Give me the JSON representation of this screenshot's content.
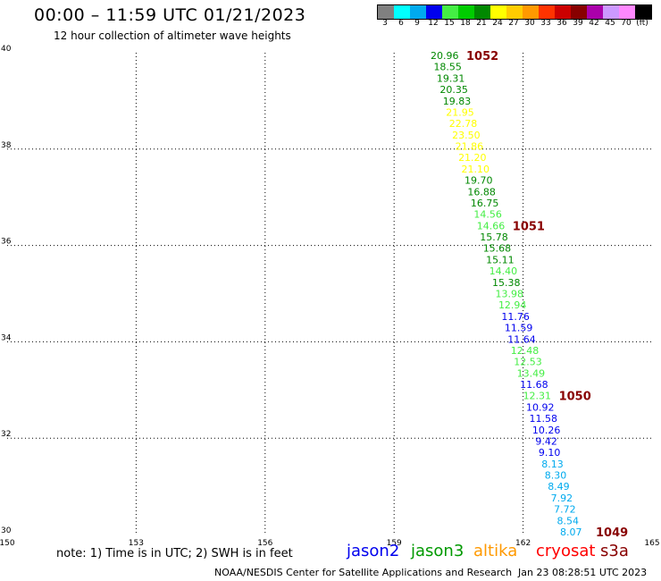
{
  "header": {
    "title": "00:00 – 11:59 UTC 01/21/2023",
    "subtitle": "12 hour collection of altimeter wave heights"
  },
  "legend": {
    "bins": [
      {
        "label": "3",
        "color": "#808080"
      },
      {
        "label": "6",
        "color": "#00ffff"
      },
      {
        "label": "9",
        "color": "#00aaee"
      },
      {
        "label": "12",
        "color": "#0000ee"
      },
      {
        "label": "15",
        "color": "#44ee44"
      },
      {
        "label": "18",
        "color": "#00cc00"
      },
      {
        "label": "21",
        "color": "#008800"
      },
      {
        "label": "24",
        "color": "#ffff00"
      },
      {
        "label": "27",
        "color": "#ffcc00"
      },
      {
        "label": "30",
        "color": "#ff9900"
      },
      {
        "label": "33",
        "color": "#ff3300"
      },
      {
        "label": "36",
        "color": "#cc0000"
      },
      {
        "label": "39",
        "color": "#880000"
      },
      {
        "label": "42",
        "color": "#aa00aa"
      },
      {
        "label": "45",
        "color": "#cc99ff"
      },
      {
        "label": "70",
        "color": "#ff88ff"
      },
      {
        "label": "",
        "color": "#000000"
      }
    ],
    "unit": "(ft)"
  },
  "map": {
    "lon_ticks": [
      "150",
      "153",
      "156",
      "159",
      "162",
      "165"
    ],
    "lat_ticks": [
      "30",
      "32",
      "34",
      "36",
      "38",
      "40"
    ]
  },
  "track": {
    "point_colors": {
      "green": "#008800",
      "lightgreen": "#44ee44",
      "yellow": "#ffff00",
      "blue": "#0000ee",
      "cyan": "#00aaee"
    },
    "swh_values": [
      {
        "label": "20.96",
        "color": "green"
      },
      {
        "label": "18.55",
        "color": "green"
      },
      {
        "label": "19.31",
        "color": "green"
      },
      {
        "label": "20.35",
        "color": "green"
      },
      {
        "label": "19.83",
        "color": "green"
      },
      {
        "label": "21.95",
        "color": "yellow"
      },
      {
        "label": "22.78",
        "color": "yellow"
      },
      {
        "label": "23.50",
        "color": "yellow"
      },
      {
        "label": "21.86",
        "color": "yellow"
      },
      {
        "label": "21.20",
        "color": "yellow"
      },
      {
        "label": "21.10",
        "color": "yellow"
      },
      {
        "label": "19.70",
        "color": "green"
      },
      {
        "label": "16.88",
        "color": "green"
      },
      {
        "label": "16.75",
        "color": "green"
      },
      {
        "label": "14.56",
        "color": "lightgreen"
      },
      {
        "label": "14.66",
        "color": "lightgreen"
      },
      {
        "label": "15.78",
        "color": "green"
      },
      {
        "label": "15.68",
        "color": "green"
      },
      {
        "label": "15.11",
        "color": "green"
      },
      {
        "label": "14.40",
        "color": "lightgreen"
      },
      {
        "label": "15.38",
        "color": "green"
      },
      {
        "label": "13.98",
        "color": "lightgreen"
      },
      {
        "label": "12.94",
        "color": "lightgreen"
      },
      {
        "label": "11.76",
        "color": "blue"
      },
      {
        "label": "11.59",
        "color": "blue"
      },
      {
        "label": "11.64",
        "color": "blue"
      },
      {
        "label": "12.48",
        "color": "lightgreen"
      },
      {
        "label": "12.53",
        "color": "lightgreen"
      },
      {
        "label": "13.49",
        "color": "lightgreen"
      },
      {
        "label": "11.68",
        "color": "blue"
      },
      {
        "label": "12.31",
        "color": "lightgreen"
      },
      {
        "label": "10.92",
        "color": "blue"
      },
      {
        "label": "11.58",
        "color": "blue"
      },
      {
        "label": "10.26",
        "color": "blue"
      },
      {
        "label": "9.42",
        "color": "blue"
      },
      {
        "label": "9.10",
        "color": "blue"
      },
      {
        "label": "8.13",
        "color": "cyan"
      },
      {
        "label": "8.30",
        "color": "cyan"
      },
      {
        "label": "8.49",
        "color": "cyan"
      },
      {
        "label": "7.92",
        "color": "cyan"
      },
      {
        "label": "7.72",
        "color": "cyan"
      },
      {
        "label": "8.54",
        "color": "cyan"
      },
      {
        "label": "8.07",
        "color": "cyan"
      }
    ],
    "time_marks": [
      {
        "label": "1052",
        "after_index": 0
      },
      {
        "label": "1051",
        "after_index": 15
      },
      {
        "label": "1050",
        "after_index": 30
      },
      {
        "label": "1049",
        "after_index": 42
      }
    ],
    "time_mark_color": "#880000"
  },
  "footer": {
    "note": "note: 1) Time is in UTC; 2) SWH is in feet",
    "missions": [
      {
        "name": "jason2",
        "color": "#0000ee"
      },
      {
        "name": "jason3",
        "color": "#009900"
      },
      {
        "name": "altika",
        "color": "#ff9900"
      },
      {
        "name": "cryosat",
        "color": "#ff0000"
      },
      {
        "name": "s3a",
        "color": "#880000"
      }
    ],
    "credit": "NOAA/NESDIS Center for Satellite Applications and Research",
    "timestamp": "Jan 23 08:28:51 UTC 2023"
  }
}
